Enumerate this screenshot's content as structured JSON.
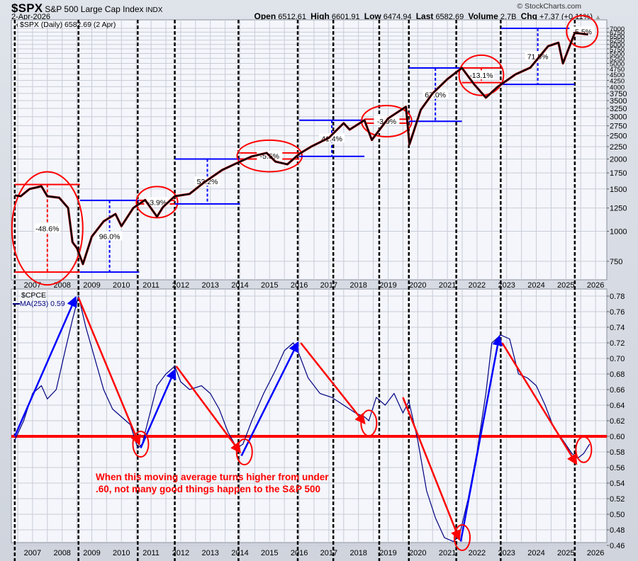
{
  "header": {
    "symbol": "$SPX",
    "name": "S&P 500 Large Cap Index",
    "exchange": "INDX",
    "date": "2-Apr-2026",
    "brand": "© StockCharts.com",
    "open_label": "Open",
    "open": "6512.61",
    "high_label": "High",
    "high": "6601.91",
    "low_label": "Low",
    "low": "6474.94",
    "last_label": "Last",
    "last": "6582.69",
    "volume_label": "Volume",
    "volume": "2.7B",
    "chg_label": "Chg",
    "chg": "+7.37 (+0.11%)"
  },
  "top_panel": {
    "legend": "$SPX (Daily) 6582.69 (2 Apr)"
  },
  "bottom_panel": {
    "title": "$CPCE",
    "legend": "MA(253) 0.59"
  },
  "annotation": {
    "line1": "When this moving average turns higher from under",
    "line2": ".60, not many good things happen to the S&P 500"
  },
  "colors": {
    "price": "#000000",
    "ma_line": "#000080",
    "up_annot": "#0000ff",
    "down_annot": "#ff0000",
    "grid": "#c8ccd6",
    "plot_bg": "#f4f6fb"
  },
  "chart_data": [
    {
      "type": "line",
      "title": "$SPX S&P 500 Large Cap Index (Daily) - log scale",
      "xlabel": "",
      "ylabel": "",
      "x_ticks": [
        "2007",
        "2008",
        "2009",
        "2010",
        "2011",
        "2012",
        "2013",
        "2014",
        "2015",
        "2016",
        "2017",
        "2018",
        "2019",
        "2020",
        "2021",
        "2022",
        "2023",
        "2024",
        "2025",
        "2026"
      ],
      "y_ticks": [
        750,
        1000,
        1250,
        1500,
        1750,
        2000,
        2250,
        2500,
        2750,
        3000,
        3250,
        3500,
        3750,
        4000,
        4250,
        4500,
        4750,
        5000,
        5250,
        5500,
        5750,
        6000,
        6250,
        6500,
        6750,
        7000
      ],
      "ylim": [
        650,
        7100
      ],
      "scale": "log",
      "grid": true,
      "series": [
        {
          "name": "$SPX",
          "x": [
            2006.9,
            2007.1,
            2007.4,
            2007.8,
            2008.0,
            2008.4,
            2008.7,
            2008.85,
            2009.0,
            2009.2,
            2009.5,
            2009.9,
            2010.3,
            2010.5,
            2010.9,
            2011.3,
            2011.7,
            2011.9,
            2012.3,
            2012.8,
            2013.3,
            2013.9,
            2014.5,
            2014.9,
            2015.4,
            2015.7,
            2016.1,
            2016.5,
            2016.9,
            2017.5,
            2018.0,
            2018.2,
            2018.7,
            2018.95,
            2019.5,
            2020.1,
            2020.22,
            2020.6,
            2021.0,
            2021.5,
            2021.99,
            2022.4,
            2022.8,
            2023.2,
            2023.8,
            2024.3,
            2024.9,
            2025.25,
            2025.4,
            2025.8,
            2026.25
          ],
          "values": [
            1410,
            1400,
            1500,
            1540,
            1400,
            1380,
            1250,
            900,
            850,
            730,
            950,
            1100,
            1180,
            1050,
            1250,
            1350,
            1150,
            1260,
            1400,
            1430,
            1600,
            1800,
            1950,
            2050,
            2120,
            1950,
            1900,
            2100,
            2250,
            2450,
            2820,
            2650,
            2900,
            2400,
            2950,
            3300,
            2300,
            3200,
            3750,
            4300,
            4790,
            4100,
            3600,
            4000,
            4500,
            4800,
            5900,
            6100,
            5000,
            6700,
            6600
          ]
        }
      ],
      "annotations": [
        {
          "type": "range",
          "color": "red",
          "label": "-48.6%",
          "from_year": 2006.9,
          "to_year": 2009.1,
          "high": 1565,
          "low": 676
        },
        {
          "type": "range",
          "color": "blue",
          "label": "96.0%",
          "from_year": 2009.1,
          "to_year": 2011.1,
          "high": 1345,
          "low": 676
        },
        {
          "type": "range",
          "color": "red",
          "label": "-3.9%",
          "from_year": 2011.1,
          "to_year": 2012.3,
          "high": 1345,
          "low": 1300
        },
        {
          "type": "range",
          "color": "blue",
          "label": "53.2%",
          "from_year": 2012.3,
          "to_year": 2014.5,
          "high": 2000,
          "low": 1300
        },
        {
          "type": "range",
          "color": "red",
          "label": "-5.5%",
          "from_year": 2014.5,
          "to_year": 2016.5,
          "high": 2120,
          "low": 2000
        },
        {
          "type": "range",
          "color": "blue",
          "label": "41.4%",
          "from_year": 2016.5,
          "to_year": 2018.7,
          "high": 2900,
          "low": 2050
        },
        {
          "type": "range",
          "color": "red",
          "label": "-3.9%",
          "from_year": 2018.7,
          "to_year": 2020.2,
          "high": 2930,
          "low": 2820
        },
        {
          "type": "range",
          "color": "blue",
          "label": "67.0%",
          "from_year": 2020.2,
          "to_year": 2021.99,
          "high": 4790,
          "low": 2870
        },
        {
          "type": "range",
          "color": "red",
          "label": "-13.1%",
          "from_year": 2021.99,
          "to_year": 2023.3,
          "high": 4790,
          "low": 4160
        },
        {
          "type": "range",
          "color": "blue",
          "label": "71.5%",
          "from_year": 2023.3,
          "to_year": 2025.8,
          "high": 7000,
          "low": 4090
        },
        {
          "type": "range",
          "color": "red",
          "label": "-5.5%",
          "from_year": 2025.8,
          "to_year": 2026.3,
          "high": 7000,
          "low": 6600
        }
      ]
    },
    {
      "type": "line",
      "title": "$CPCE MA(253)",
      "xlabel": "",
      "ylabel": "",
      "x_ticks": [
        "2007",
        "2008",
        "2009",
        "2010",
        "2011",
        "2012",
        "2013",
        "2014",
        "2015",
        "2016",
        "2017",
        "2018",
        "2019",
        "2020",
        "2021",
        "2022",
        "2023",
        "2024",
        "2025",
        "2026"
      ],
      "y_ticks": [
        0.46,
        0.48,
        0.5,
        0.52,
        0.54,
        0.56,
        0.58,
        0.6,
        0.62,
        0.64,
        0.66,
        0.68,
        0.7,
        0.72,
        0.74,
        0.76,
        0.78
      ],
      "ylim": [
        0.455,
        0.785
      ],
      "grid": true,
      "series": [
        {
          "name": "MA(253)",
          "x": [
            2006.9,
            2007.2,
            2007.5,
            2007.8,
            2008.0,
            2008.3,
            2008.6,
            2008.85,
            2009.05,
            2009.3,
            2009.6,
            2009.9,
            2010.2,
            2010.5,
            2010.8,
            2011.05,
            2011.2,
            2011.4,
            2011.7,
            2012.0,
            2012.3,
            2012.5,
            2012.8,
            2013.2,
            2013.5,
            2013.8,
            2014.1,
            2014.4,
            2014.6,
            2014.9,
            2015.3,
            2015.7,
            2016.0,
            2016.3,
            2016.5,
            2016.8,
            2017.2,
            2017.6,
            2018.0,
            2018.4,
            2018.7,
            2018.85,
            2019.1,
            2019.4,
            2019.7,
            2020.0,
            2020.2,
            2020.5,
            2020.8,
            2021.1,
            2021.4,
            2021.7,
            2021.9,
            2022.2,
            2022.5,
            2022.8,
            2023.0,
            2023.3,
            2023.6,
            2023.9,
            2024.2,
            2024.5,
            2024.8,
            2025.1,
            2025.4,
            2025.7,
            2025.9,
            2026.1,
            2026.3
          ],
          "values": [
            0.595,
            0.62,
            0.655,
            0.665,
            0.648,
            0.66,
            0.71,
            0.75,
            0.78,
            0.74,
            0.7,
            0.66,
            0.635,
            0.625,
            0.615,
            0.585,
            0.59,
            0.62,
            0.665,
            0.68,
            0.69,
            0.67,
            0.66,
            0.665,
            0.655,
            0.635,
            0.605,
            0.585,
            0.59,
            0.62,
            0.655,
            0.685,
            0.71,
            0.72,
            0.705,
            0.675,
            0.655,
            0.65,
            0.64,
            0.63,
            0.625,
            0.62,
            0.65,
            0.64,
            0.655,
            0.63,
            0.645,
            0.595,
            0.53,
            0.495,
            0.47,
            0.465,
            0.472,
            0.52,
            0.58,
            0.655,
            0.72,
            0.73,
            0.725,
            0.68,
            0.675,
            0.665,
            0.64,
            0.61,
            0.595,
            0.578,
            0.572,
            0.578,
            0.59
          ]
        }
      ],
      "reference_line": {
        "value": 0.6,
        "color": "red"
      },
      "arrows": [
        {
          "color": "blue",
          "from": [
            2006.9,
            0.6
          ],
          "to": [
            2008.95,
            0.778
          ]
        },
        {
          "color": "red",
          "from": [
            2009.05,
            0.778
          ],
          "to": [
            2011.1,
            0.59
          ]
        },
        {
          "color": "blue",
          "from": [
            2011.15,
            0.585
          ],
          "to": [
            2012.3,
            0.685
          ]
        },
        {
          "color": "red",
          "from": [
            2012.35,
            0.69
          ],
          "to": [
            2014.5,
            0.58
          ]
        },
        {
          "color": "blue",
          "from": [
            2014.55,
            0.575
          ],
          "to": [
            2016.45,
            0.72
          ]
        },
        {
          "color": "red",
          "from": [
            2016.55,
            0.72
          ],
          "to": [
            2018.7,
            0.617
          ]
        },
        {
          "color": "red",
          "from": [
            2020.0,
            0.65
          ],
          "to": [
            2021.9,
            0.468
          ]
        },
        {
          "color": "blue",
          "from": [
            2021.95,
            0.465
          ],
          "to": [
            2023.25,
            0.728
          ]
        },
        {
          "color": "red",
          "from": [
            2023.35,
            0.72
          ],
          "to": [
            2025.85,
            0.565
          ]
        }
      ],
      "circles": [
        {
          "x": 2011.15,
          "y": 0.59
        },
        {
          "x": 2014.65,
          "y": 0.58
        },
        {
          "x": 2018.85,
          "y": 0.617
        },
        {
          "x": 2022.0,
          "y": 0.47
        },
        {
          "x": 2026.1,
          "y": 0.583
        }
      ],
      "annotation_text": "When this moving average turns higher from under .60, not many good things happen to the S&P 500"
    }
  ],
  "layout": {
    "dashed_years": [
      2006.9,
      2009.05,
      2011.05,
      2012.3,
      2014.45,
      2016.45,
      2017.65,
      2019.2,
      2020.2,
      2021.8,
      2023.3,
      2025.8
    ]
  }
}
